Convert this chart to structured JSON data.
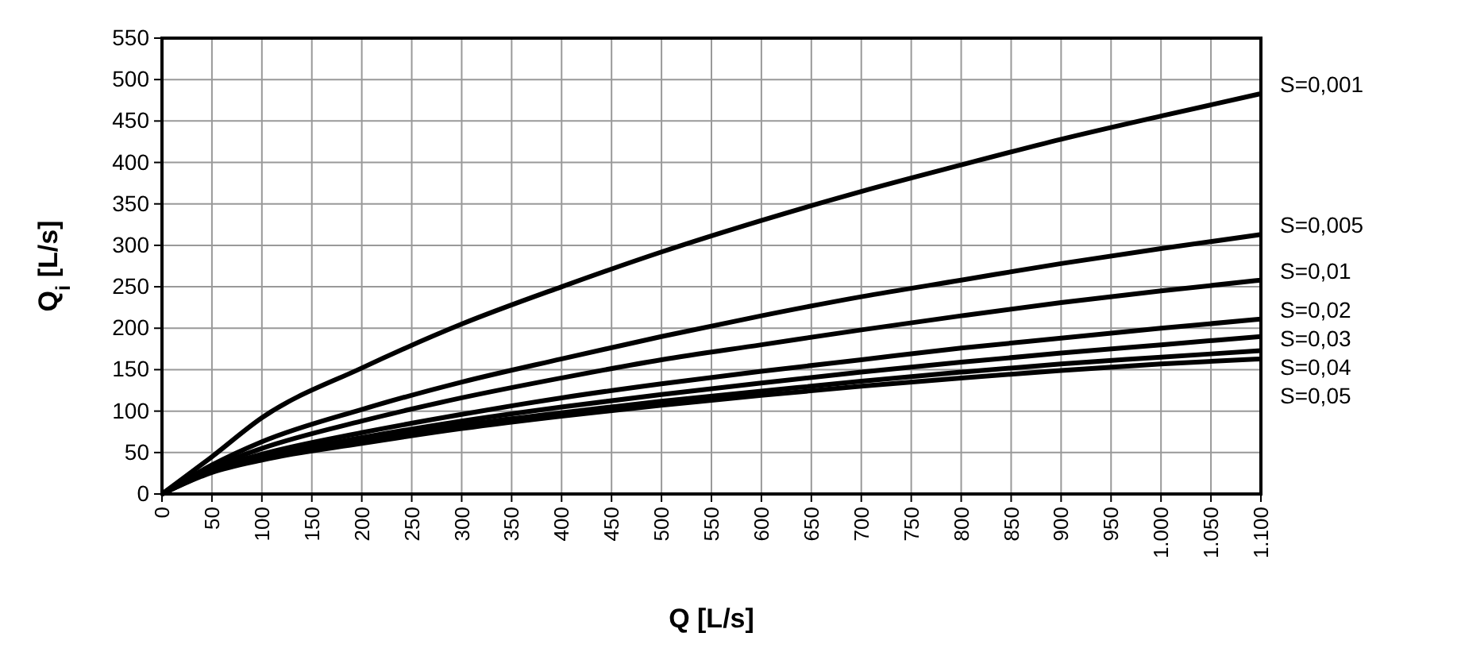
{
  "chart_data": {
    "type": "line",
    "xlabel": "Q [L/s]",
    "ylabel": "Q$_{i}$ [L/s]",
    "x": [
      0,
      50,
      100,
      200,
      300,
      400,
      500,
      600,
      700,
      800,
      900,
      1000,
      1100
    ],
    "series": [
      {
        "name": "S=0,001",
        "color": "#000000",
        "values": [
          0,
          45,
          92,
          152,
          205,
          250,
          292,
          330,
          365,
          397,
          428,
          456,
          483
        ]
      },
      {
        "name": "S=0,005",
        "color": "#000000",
        "values": [
          0,
          35,
          63,
          102,
          135,
          163,
          190,
          215,
          238,
          258,
          278,
          296,
          313
        ]
      },
      {
        "name": "S=0,01",
        "color": "#000000",
        "values": [
          0,
          32,
          55,
          88,
          116,
          140,
          162,
          180,
          198,
          215,
          231,
          245,
          258
        ]
      },
      {
        "name": "S=0,02",
        "color": "#000000",
        "values": [
          0,
          30,
          48,
          74,
          96,
          116,
          133,
          148,
          162,
          176,
          188,
          200,
          211
        ]
      },
      {
        "name": "S=0,03",
        "color": "#000000",
        "values": [
          0,
          28,
          45,
          68,
          88,
          105,
          120,
          134,
          147,
          159,
          170,
          180,
          190
        ]
      },
      {
        "name": "S=0,04",
        "color": "#000000",
        "values": [
          0,
          27,
          43,
          64,
          83,
          98,
          112,
          124,
          136,
          147,
          157,
          165,
          173
        ]
      },
      {
        "name": "S=0,05",
        "color": "#000000",
        "values": [
          0,
          26,
          41,
          61,
          79,
          94,
          107,
          119,
          130,
          140,
          149,
          157,
          163
        ]
      }
    ],
    "xlim": [
      0,
      1100
    ],
    "ylim": [
      0,
      550
    ],
    "xticks": [
      0,
      50,
      100,
      150,
      200,
      250,
      300,
      350,
      400,
      450,
      500,
      550,
      600,
      650,
      700,
      750,
      800,
      850,
      900,
      950,
      {
        "value": 1000,
        "label": "1.000"
      },
      {
        "value": 1050,
        "label": "1.050"
      },
      {
        "value": 1100,
        "label": "1.100"
      }
    ],
    "yticks": [
      0,
      50,
      100,
      150,
      200,
      250,
      300,
      350,
      400,
      450,
      500,
      550
    ],
    "grid": true,
    "line_style": "solid",
    "marker": "none"
  }
}
